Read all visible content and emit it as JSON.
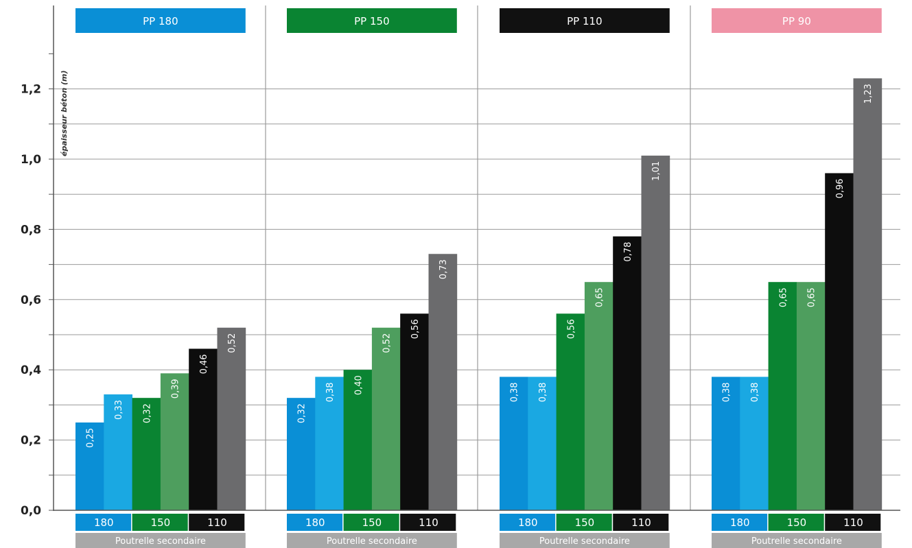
{
  "chart_data": {
    "type": "bar",
    "ylabel": "épaisseur béton (m)",
    "ylim": [
      0,
      1.3
    ],
    "y_ticks": [
      "0,0",
      "0,2",
      "0,4",
      "0,6",
      "0,8",
      "1,0",
      "1,2"
    ],
    "grid": true,
    "groups": [
      {
        "title": "PP 180",
        "title_color": "#0a8fd6",
        "title_text_color": "#ffffff",
        "values": [
          0.25,
          0.33,
          0.32,
          0.39,
          0.46,
          0.52
        ],
        "labels": [
          "0,25",
          "0,33",
          "0,32",
          "0,39",
          "0,46",
          "0,52"
        ]
      },
      {
        "title": "PP 150",
        "title_color": "#0a8432",
        "title_text_color": "#ffffff",
        "values": [
          0.32,
          0.38,
          0.4,
          0.52,
          0.56,
          0.73
        ],
        "labels": [
          "0,32",
          "0,38",
          "0,40",
          "0,52",
          "0,56",
          "0,73"
        ]
      },
      {
        "title": "PP 110",
        "title_color": "#111111",
        "title_text_color": "#ffffff",
        "values": [
          0.38,
          0.38,
          0.56,
          0.65,
          0.78,
          1.01
        ],
        "labels": [
          "0,38",
          "0,38",
          "0,56",
          "0,65",
          "0,78",
          "1,01"
        ]
      },
      {
        "title": "PP 90",
        "title_color": "#ef93a6",
        "title_text_color": "#ffffff",
        "values": [
          0.38,
          0.38,
          0.65,
          0.65,
          0.96,
          1.23
        ],
        "labels": [
          "0,38",
          "0,38",
          "0,65",
          "0,65",
          "0,96",
          "1,23"
        ]
      }
    ],
    "bar_colors": [
      "#0a8fd6",
      "#1aa8e2",
      "#0a8432",
      "#4e9e5e",
      "#0d0d0d",
      "#6b6b6d"
    ],
    "sub_categories": [
      {
        "label": "180",
        "color": "#0a8fd6"
      },
      {
        "label": "150",
        "color": "#0a8432"
      },
      {
        "label": "110",
        "color": "#111111"
      }
    ],
    "sub_caption": "Poutrelle secondaire",
    "sub_caption_color": "#a8a8a8",
    "axis_color": "#555555",
    "grid_color": "#9a9a9a"
  }
}
